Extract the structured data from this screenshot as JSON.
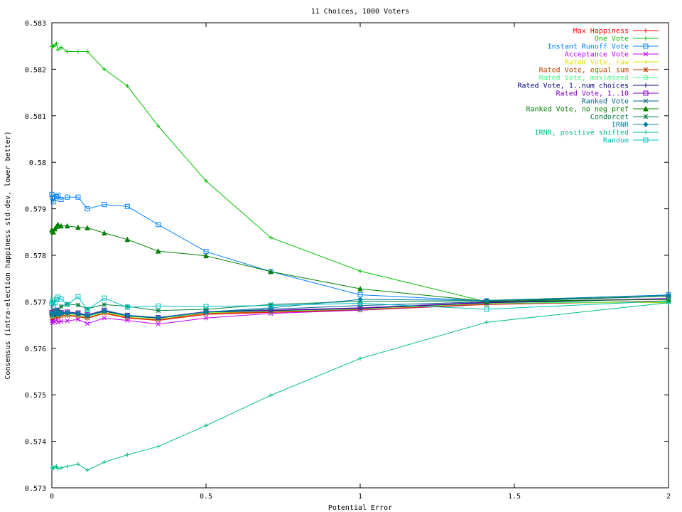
{
  "chart_data": {
    "type": "line",
    "title": "11 Choices, 1000 Voters",
    "xlabel": "Potential Error",
    "ylabel": "Consensus (intra-election happiness std-dev, lower better)",
    "xlim": [
      0,
      2
    ],
    "ylim": [
      0.573,
      0.583
    ],
    "xticks": [
      0,
      0.5,
      1,
      1.5,
      2
    ],
    "xtick_labels": [
      "0",
      "0.5",
      "1",
      "1.5",
      "2"
    ],
    "yticks": [
      0.573,
      0.574,
      0.575,
      0.576,
      0.577,
      0.578,
      0.579,
      0.58,
      0.581,
      0.582,
      0.583
    ],
    "ytick_labels": [
      "0.573",
      "0.574",
      "0.575",
      "0.576",
      "0.577",
      "0.578",
      "0.579",
      "0.58",
      "0.581",
      "0.582",
      "0.583"
    ],
    "grid": false,
    "legend_position": "top-right",
    "x": [
      0,
      0.0025,
      0.005,
      0.01,
      0.015,
      0.02,
      0.03,
      0.05,
      0.085,
      0.115,
      0.17,
      0.245,
      0.345,
      0.5,
      0.71,
      1.0,
      1.41,
      2.0
    ],
    "series": [
      {
        "name": "Max Happiness",
        "color": "#ff0000",
        "marker": "plus",
        "values": [
          0.57667,
          0.57662,
          0.57665,
          0.57668,
          0.57671,
          0.57666,
          0.57669,
          0.5767,
          0.57668,
          0.57664,
          0.57675,
          0.57665,
          0.5766,
          0.57673,
          0.57677,
          0.57682,
          0.57694,
          0.57702
        ]
      },
      {
        "name": "One Vote",
        "color": "#00c000",
        "marker": "plus",
        "values": [
          0.58249,
          0.5825,
          0.58249,
          0.58252,
          0.58255,
          0.58242,
          0.58247,
          0.58238,
          0.58238,
          0.58238,
          0.582,
          0.58164,
          0.58078,
          0.5796,
          0.57838,
          0.57766,
          0.577,
          0.57698
        ]
      },
      {
        "name": "Instant Runoff Vote",
        "color": "#0080ff",
        "marker": "square",
        "values": [
          0.57931,
          0.57925,
          0.57915,
          0.57922,
          0.57926,
          0.57929,
          0.5792,
          0.57925,
          0.57925,
          0.579,
          0.57909,
          0.57905,
          0.57866,
          0.57808,
          0.57765,
          0.57715,
          0.57702,
          0.57715
        ]
      },
      {
        "name": "Acceptance Vote",
        "color": "#c000ff",
        "marker": "x",
        "values": [
          0.57658,
          0.57655,
          0.5766,
          0.57657,
          0.57662,
          0.57656,
          0.57658,
          0.57659,
          0.57662,
          0.57653,
          0.57665,
          0.5766,
          0.57652,
          0.57665,
          0.57675,
          0.57682,
          0.57695,
          0.577
        ]
      },
      {
        "name": "Rated Vote, raw",
        "color": "#e0e000",
        "marker": "plus",
        "values": [
          0.57672,
          0.57668,
          0.5767,
          0.57674,
          0.57677,
          0.5767,
          0.57672,
          0.57672,
          0.5767,
          0.57666,
          0.57677,
          0.57667,
          0.57662,
          0.57676,
          0.57679,
          0.57684,
          0.57696,
          0.57699
        ]
      },
      {
        "name": "Rated Vote, equal sum",
        "color": "#c04000",
        "marker": "star",
        "values": [
          0.5767,
          0.57666,
          0.57668,
          0.57672,
          0.57675,
          0.57668,
          0.5767,
          0.57671,
          0.57669,
          0.57665,
          0.57676,
          0.57666,
          0.57661,
          0.57675,
          0.57678,
          0.57683,
          0.57695,
          0.57701
        ]
      },
      {
        "name": "Rated Vote, maximized",
        "color": "#40ff80",
        "marker": "circle",
        "values": [
          0.57674,
          0.5767,
          0.57672,
          0.57676,
          0.57679,
          0.57672,
          0.57674,
          0.57674,
          0.57672,
          0.57668,
          0.57679,
          0.57669,
          0.57664,
          0.57677,
          0.5768,
          0.57685,
          0.57697,
          0.577
        ]
      },
      {
        "name": "Rated Vote, 1..num choices",
        "color": "#000080",
        "marker": "plus",
        "values": [
          0.57675,
          0.57671,
          0.57673,
          0.57677,
          0.5768,
          0.57673,
          0.57675,
          0.57676,
          0.57674,
          0.5767,
          0.5768,
          0.5767,
          0.57665,
          0.57678,
          0.57681,
          0.57686,
          0.57698,
          0.57706
        ]
      },
      {
        "name": "Rated Vote, 1..10",
        "color": "#8000c0",
        "marker": "square",
        "values": [
          0.57677,
          0.57673,
          0.57675,
          0.57679,
          0.57682,
          0.57675,
          0.57677,
          0.57678,
          0.57676,
          0.57672,
          0.57682,
          0.57671,
          0.57666,
          0.57679,
          0.57682,
          0.57687,
          0.57699,
          0.57707
        ]
      },
      {
        "name": "Ranked Vote",
        "color": "#006080",
        "marker": "x",
        "values": [
          0.57676,
          0.57672,
          0.57674,
          0.57678,
          0.57681,
          0.57674,
          0.57676,
          0.57677,
          0.57675,
          0.57671,
          0.57681,
          0.57671,
          0.57666,
          0.57678,
          0.57684,
          0.57692,
          0.577,
          0.57712
        ]
      },
      {
        "name": "Ranked Vote, no neg pref",
        "color": "#008000",
        "marker": "triangle",
        "values": [
          0.57855,
          0.57851,
          0.5785,
          0.57857,
          0.57862,
          0.57866,
          0.57863,
          0.57863,
          0.5786,
          0.57859,
          0.57848,
          0.57834,
          0.57809,
          0.57799,
          0.57765,
          0.57728,
          0.57701,
          0.57705
        ]
      },
      {
        "name": "Condorcet",
        "color": "#008040",
        "marker": "star",
        "values": [
          0.57675,
          0.57671,
          0.57673,
          0.57678,
          0.57682,
          0.57676,
          0.5769,
          0.57695,
          0.57693,
          0.57685,
          0.57694,
          0.5769,
          0.57681,
          0.57684,
          0.57694,
          0.57701,
          0.57702,
          0.57712
        ]
      },
      {
        "name": "IRNR",
        "color": "#0080a0",
        "marker": "diamond",
        "values": [
          0.57676,
          0.57672,
          0.57674,
          0.57678,
          0.57681,
          0.57674,
          0.57676,
          0.57677,
          0.57675,
          0.57671,
          0.57681,
          0.57671,
          0.57666,
          0.57678,
          0.57687,
          0.57705,
          0.57703,
          0.57714
        ]
      },
      {
        "name": "IRNR, positive shifted",
        "color": "#00c080",
        "marker": "plus",
        "values": [
          0.57343,
          0.57343,
          0.57342,
          0.57345,
          0.57346,
          0.57341,
          0.57343,
          0.57346,
          0.57351,
          0.57338,
          0.57355,
          0.57371,
          0.57389,
          0.57434,
          0.57499,
          0.57578,
          0.57656,
          0.57698
        ]
      },
      {
        "name": "Random",
        "color": "#00c0c0",
        "marker": "square",
        "values": [
          0.57696,
          0.57702,
          0.5769,
          0.57698,
          0.57705,
          0.5771,
          0.57706,
          0.57694,
          0.57711,
          0.57683,
          0.57708,
          0.57688,
          0.57691,
          0.5769,
          0.57692,
          0.57697,
          0.57684,
          0.57702
        ]
      }
    ]
  }
}
